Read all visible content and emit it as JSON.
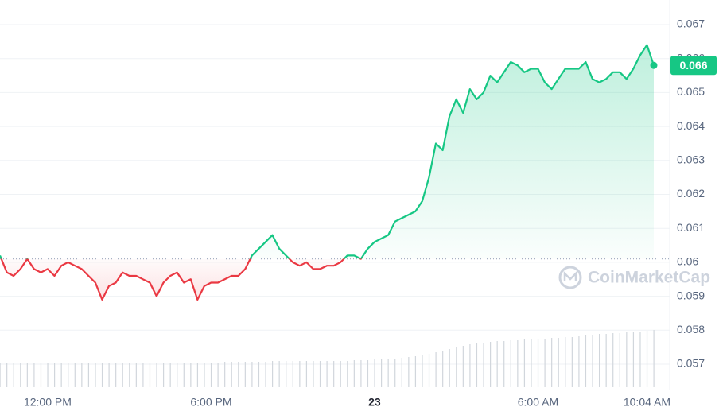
{
  "chart_data": {
    "type": "line",
    "categories": [
      null,
      null,
      null,
      null,
      null,
      null,
      null,
      "12:00 PM",
      null,
      null,
      null,
      null,
      null,
      null,
      null,
      null,
      null,
      null,
      null,
      null,
      null,
      null,
      null,
      null,
      null,
      null,
      null,
      null,
      null,
      null,
      null,
      "6:00 PM",
      null,
      null,
      null,
      null,
      null,
      null,
      null,
      null,
      null,
      null,
      null,
      null,
      null,
      null,
      null,
      null,
      null,
      null,
      null,
      null,
      null,
      null,
      null,
      "23",
      null,
      null,
      null,
      null,
      null,
      null,
      null,
      null,
      null,
      null,
      null,
      null,
      null,
      null,
      null,
      null,
      null,
      null,
      null,
      null,
      null,
      null,
      null,
      "6:00 AM",
      null,
      null,
      null,
      null,
      null,
      null,
      null,
      null,
      null,
      null,
      null,
      null,
      null,
      null,
      null,
      "10:04 AM",
      null
    ],
    "series": [
      {
        "color": "#16c784",
        "values": [
          0.0602,
          0.0597,
          0.0596,
          0.0598,
          0.0601,
          0.0598,
          0.0597,
          0.0598,
          0.0596,
          0.0599,
          0.06,
          0.0599,
          0.0598,
          0.0596,
          0.0594,
          0.0589,
          0.0593,
          0.0594,
          0.0597,
          0.0596,
          0.0596,
          0.0595,
          0.0594,
          0.059,
          0.0594,
          0.0596,
          0.0597,
          0.0594,
          0.0595,
          0.0589,
          0.0593,
          0.0594,
          0.0594,
          0.0595,
          0.0596,
          0.0596,
          0.0598,
          0.0602,
          0.0604,
          0.0606,
          0.0608,
          0.0604,
          0.0602,
          0.06,
          0.0599,
          0.06,
          0.0598,
          0.0598,
          0.0599,
          0.0599,
          0.06,
          0.0602,
          0.0602,
          0.0601,
          0.0604,
          0.0606,
          0.0607,
          0.0608,
          0.0612,
          0.0613,
          0.0614,
          0.0615,
          0.0618,
          0.0625,
          0.0635,
          0.0633,
          0.0643,
          0.0648,
          0.0644,
          0.0651,
          0.0648,
          0.065,
          0.0655,
          0.0653,
          0.0656,
          0.0659,
          0.0658,
          0.0656,
          0.0657,
          0.0657,
          0.0653,
          0.0651,
          0.0654,
          0.0657,
          0.0657,
          0.0657,
          0.0659,
          0.0654,
          0.0653,
          0.0654,
          0.0656,
          0.0656,
          0.0654,
          0.0657,
          0.0661,
          0.0664,
          0.0658
        ]
      }
    ],
    "volume": [
      30,
      30,
      30,
      30,
      30,
      30,
      30,
      30,
      30,
      30,
      30,
      30,
      30,
      30,
      30,
      30,
      30,
      30,
      30,
      30,
      30,
      30,
      30,
      30,
      30,
      30,
      30,
      30,
      30,
      31,
      31,
      31,
      31,
      32,
      32,
      32,
      32,
      32,
      32,
      32,
      33,
      33,
      33,
      33,
      33,
      33,
      33,
      33,
      33,
      33,
      33,
      33,
      34,
      34,
      34,
      35,
      35,
      36,
      36,
      37,
      38,
      39,
      40,
      42,
      44,
      46,
      48,
      50,
      52,
      54,
      55,
      56,
      57,
      58,
      58,
      59,
      59,
      60,
      60,
      61,
      61,
      62,
      62,
      63,
      63,
      64,
      65,
      66,
      67,
      67,
      68,
      68,
      69,
      70,
      70,
      71,
      72
    ],
    "down_color": "#ea3943",
    "baseline": 0.0601,
    "current_price": {
      "value": 0.0658,
      "label": "0.066"
    },
    "watermark": "CoinMarketCap",
    "ylim": [
      0.0563,
      0.0673
    ],
    "yticks": [
      0.057,
      0.058,
      0.059,
      0.06,
      0.061,
      0.062,
      0.063,
      0.064,
      0.065,
      0.066,
      0.067
    ],
    "grid": true
  }
}
